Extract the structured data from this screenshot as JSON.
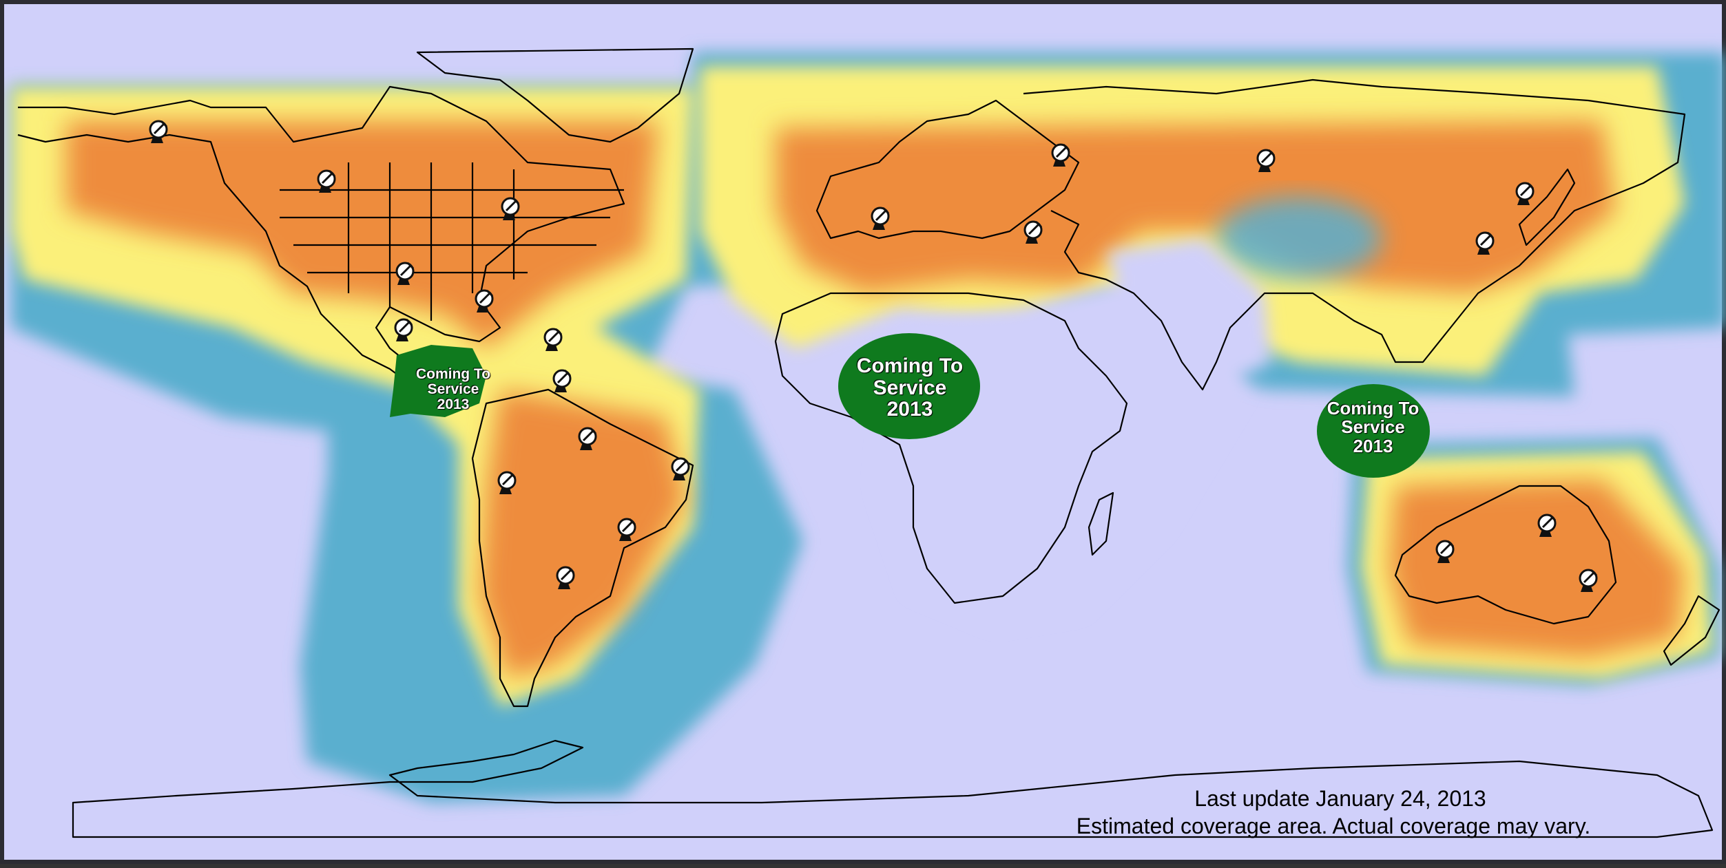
{
  "captions": {
    "last_update": "Last update January 24, 2013",
    "disclaimer": "Estimated coverage area.  Actual coverage may vary."
  },
  "coming_to_service": [
    {
      "line1": "Coming To",
      "line2": "Service",
      "line3": "2013",
      "region": "Caribbean / Central America"
    },
    {
      "line1": "Coming To",
      "line2": "Service",
      "line3": "2013",
      "region": "West Africa"
    },
    {
      "line1": "Coming To",
      "line2": "Service",
      "line3": "2013",
      "region": "Southeast Asia"
    }
  ],
  "legend_colors": {
    "ocean": "#d0d0fa",
    "strong_coverage": "#ee8c3e",
    "medium_coverage": "#fbf07a",
    "weak_coverage": "#5aafcf",
    "coming_soon": "#0f7a1e",
    "border": "#000000"
  },
  "antenna_icon": "satellite-dish-icon",
  "antennas": [
    {
      "name": "alaska"
    },
    {
      "name": "canada-west"
    },
    {
      "name": "canada-east"
    },
    {
      "name": "texas"
    },
    {
      "name": "florida"
    },
    {
      "name": "mexico"
    },
    {
      "name": "puerto-rico"
    },
    {
      "name": "venezuela"
    },
    {
      "name": "colombia-east"
    },
    {
      "name": "ecuador"
    },
    {
      "name": "brazil-northeast"
    },
    {
      "name": "brazil-south"
    },
    {
      "name": "argentina"
    },
    {
      "name": "spain"
    },
    {
      "name": "turkey"
    },
    {
      "name": "russia-west"
    },
    {
      "name": "russia-central"
    },
    {
      "name": "russia-east"
    },
    {
      "name": "korea"
    },
    {
      "name": "australia-west"
    },
    {
      "name": "australia-central"
    },
    {
      "name": "australia-east"
    }
  ]
}
